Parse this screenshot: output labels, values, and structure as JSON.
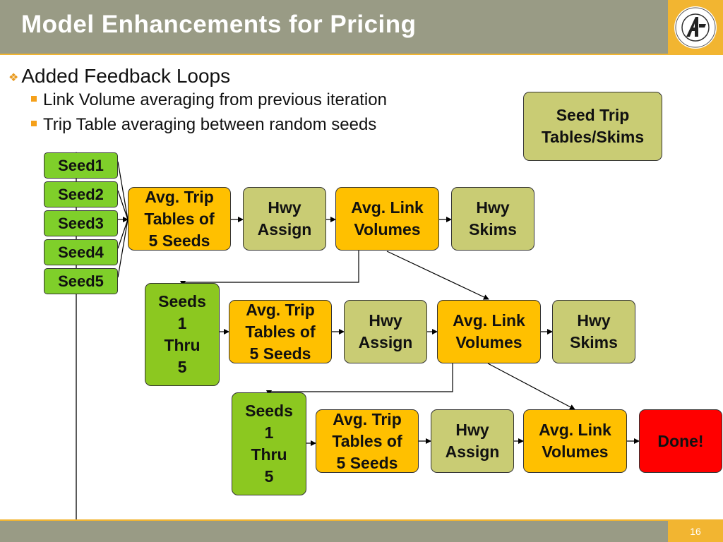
{
  "slide": {
    "title": "Model Enhancements for Pricing",
    "page_number": "16",
    "bullets": {
      "main": "Added Feedback Loops",
      "sub": [
        "Link Volume averaging from previous iteration",
        "Trip Table averaging between random seeds"
      ]
    }
  },
  "legend_box": "Seed Trip\nTables/Skims",
  "seeds": [
    "Seed1",
    "Seed2",
    "Seed3",
    "Seed4",
    "Seed5"
  ],
  "row1": {
    "avg_trip": "Avg. Trip\nTables of\n 5 Seeds",
    "hwy_assign": "Hwy\nAssign",
    "avg_link": "Avg. Link\nVolumes",
    "hwy_skims": "Hwy\nSkims"
  },
  "row2": {
    "seeds": "Seeds\n1\nThru\n5",
    "avg_trip": "Avg. Trip\nTables of\n 5 Seeds",
    "hwy_assign": "Hwy\nAssign",
    "avg_link": "Avg. Link\nVolumes",
    "hwy_skims": "Hwy\nSkims"
  },
  "row3": {
    "seeds": "Seeds\n1\nThru\n5",
    "avg_trip": "Avg. Trip\nTables of\n 5 Seeds",
    "hwy_assign": "Hwy\nAssign",
    "avg_link": "Avg. Link\nVolumes",
    "done": "Done!"
  },
  "colors": {
    "header": "#999b85",
    "accent": "#f2b531",
    "seed_green": "#8cc820",
    "olive": "#c9cc74",
    "amber": "#ffc000",
    "done_red": "#ff0000"
  },
  "logo": {
    "icon": "sfcta-logo-icon",
    "text": "SAN FRANCISCO COUNTY TRANSPORTATION AUTHORITY"
  }
}
